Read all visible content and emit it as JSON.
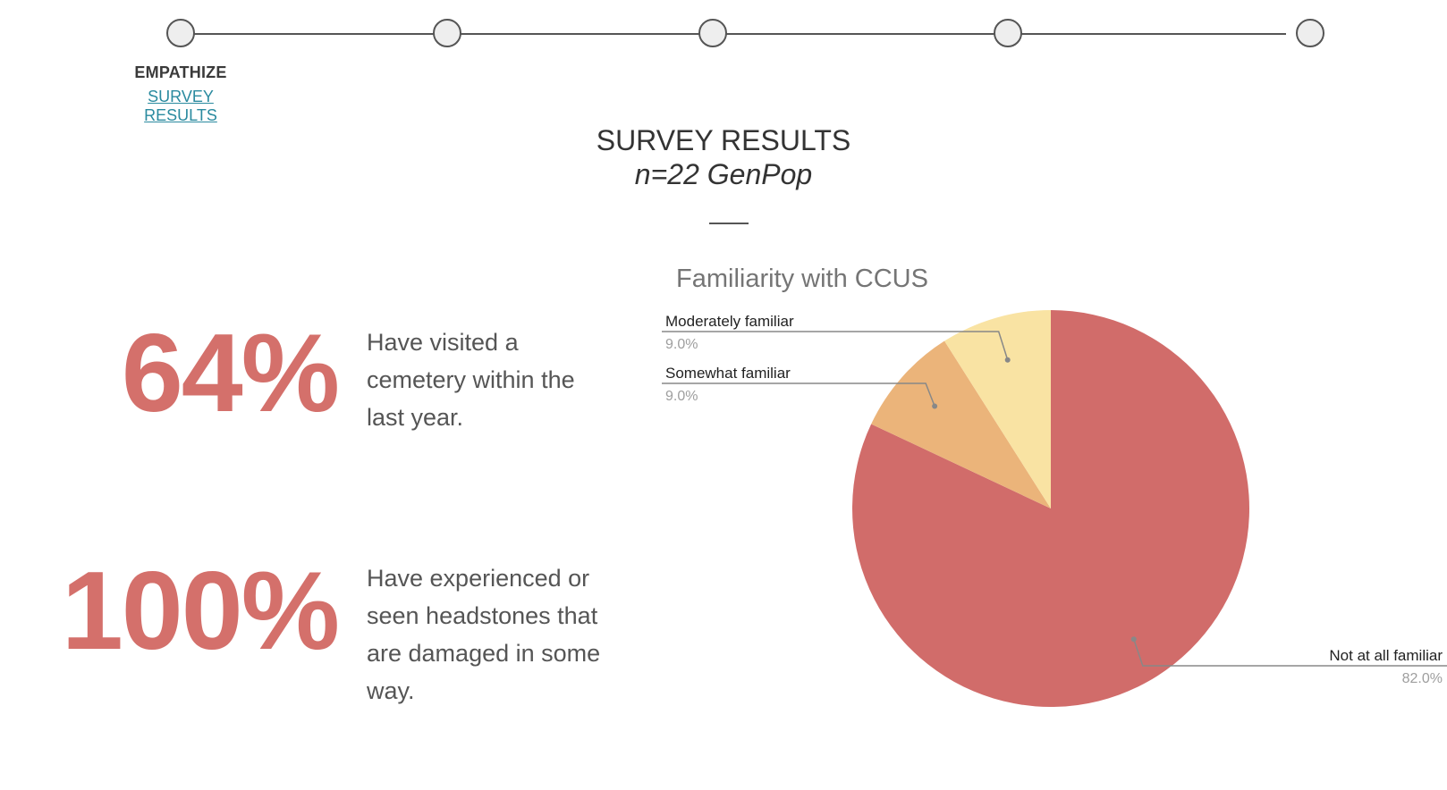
{
  "stepper": {
    "steps": [
      {
        "state": "active"
      },
      {
        "state": "inactive"
      },
      {
        "state": "inactive"
      },
      {
        "state": "inactive"
      },
      {
        "state": "inactive"
      }
    ],
    "active_label": "EMPATHIZE",
    "active_link": "SURVEY RESULTS"
  },
  "header": {
    "title": "SURVEY RESULTS",
    "subtitle": "n=22 GenPop"
  },
  "stats": [
    {
      "value": "64%",
      "text": "Have visited a cemetery within the last year."
    },
    {
      "value": "100%",
      "text": "Have experienced or seen headstones that are damaged in some way."
    }
  ],
  "colors": {
    "accent": "#e8332a",
    "stat": "#d4706b",
    "link": "#2a8a9f"
  },
  "chart_data": {
    "type": "pie",
    "title": "Familiarity with CCUS",
    "slices": [
      {
        "label": "Not at all familiar",
        "value": 82.0,
        "display": "82.0%",
        "color": "#d16c6a"
      },
      {
        "label": "Somewhat familiar",
        "value": 9.0,
        "display": "9.0%",
        "color": "#ebb47a"
      },
      {
        "label": "Moderately familiar",
        "value": 9.0,
        "display": "9.0%",
        "color": "#f9e3a3"
      }
    ]
  }
}
